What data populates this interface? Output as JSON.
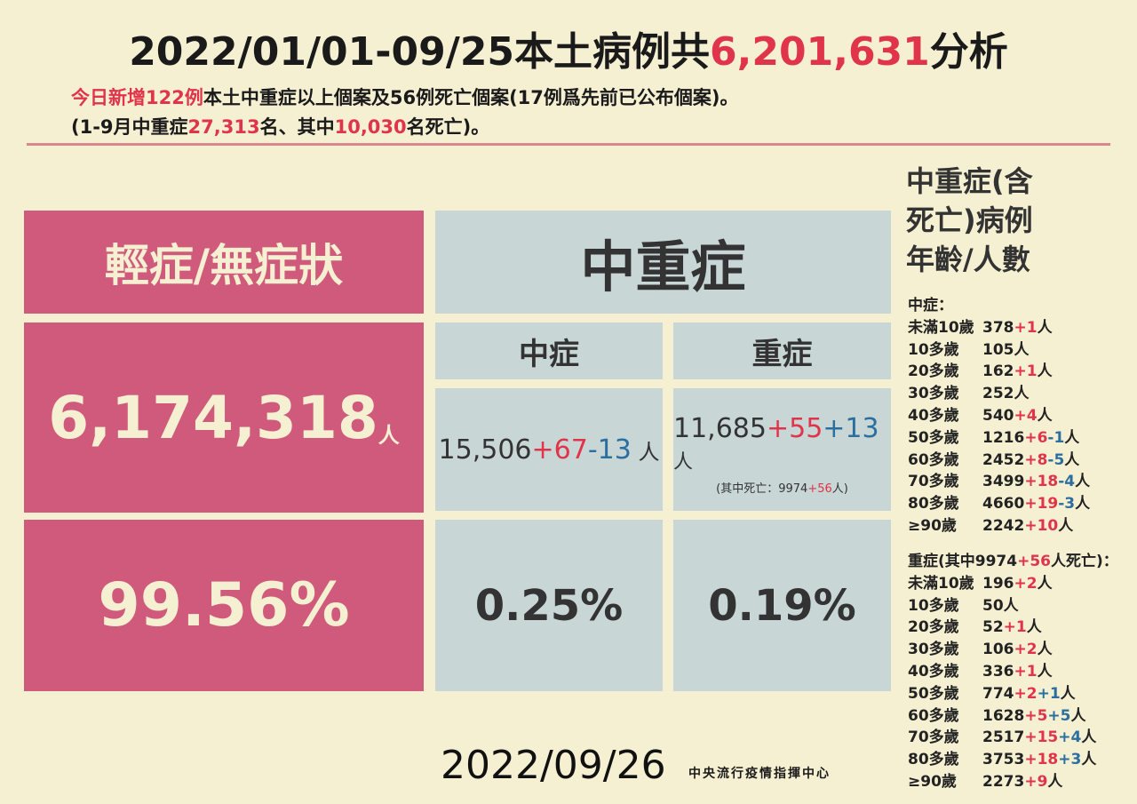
{
  "header": {
    "title": {
      "prefix": "2022/01/01-09/25本土病例共",
      "total": "6,201,631",
      "suffix": "分析"
    },
    "line1": {
      "highlight": "今日新增122例",
      "text": "本土中重症以上個案及56例死亡個案(17例爲先前已公布個案)。"
    },
    "line2": {
      "a": "(1-9月中重症",
      "b": "27,313",
      "c": "名、其中",
      "d": "10,030",
      "e": "名死亡)。"
    }
  },
  "table": {
    "mild": {
      "header": "輕症/無症狀",
      "count": "6,174,318",
      "unit": "人",
      "percent": "99.56%"
    },
    "severe_total": {
      "header": "中重症"
    },
    "moderate": {
      "header": "中症",
      "count": "15,506",
      "up": "+67",
      "down": "-13",
      "unit": " 人",
      "percent": "0.25%"
    },
    "severe": {
      "header": "重症",
      "count": "11,685",
      "up": "+55",
      "dead": "+13",
      "unit": "人",
      "note_prefix": "(其中死亡：9974",
      "note_add": "+56",
      "note_suffix": "人)",
      "percent": "0.19%"
    }
  },
  "age_panel": {
    "title_lines": [
      "中重症(含",
      "死亡)病例",
      "年齡/人數"
    ],
    "unit": "人",
    "moderate": {
      "heading": "中症：",
      "rows": [
        {
          "age": "未滿10歲",
          "count": "378",
          "changes": [
            "+1"
          ]
        },
        {
          "age": "10多歲",
          "count": "105",
          "changes": []
        },
        {
          "age": "20多歲",
          "count": "162",
          "changes": [
            "+1"
          ]
        },
        {
          "age": "30多歲",
          "count": "252",
          "changes": []
        },
        {
          "age": "40多歲",
          "count": "540",
          "changes": [
            "+4"
          ]
        },
        {
          "age": "50多歲",
          "count": "1216",
          "changes": [
            "+6",
            "-1"
          ]
        },
        {
          "age": "60多歲",
          "count": "2452",
          "changes": [
            "+8",
            "-5"
          ]
        },
        {
          "age": "70多歲",
          "count": "3499",
          "changes": [
            "+18",
            "-4"
          ]
        },
        {
          "age": "80多歲",
          "count": "4660",
          "changes": [
            "+19",
            "-3"
          ]
        },
        {
          "age": "≥90歲",
          "count": "2242",
          "changes": [
            "+10"
          ]
        }
      ]
    },
    "severe": {
      "heading_prefix": "重症(其中9974",
      "heading_add": "+56",
      "heading_suffix": "人死亡)：",
      "rows": [
        {
          "age": "未滿10歲",
          "count": "196",
          "changes": [
            "+2"
          ]
        },
        {
          "age": "10多歲",
          "count": "50",
          "changes": []
        },
        {
          "age": "20多歲",
          "count": "52",
          "changes": [
            "+1"
          ]
        },
        {
          "age": "30多歲",
          "count": "106",
          "changes": [
            "+2"
          ]
        },
        {
          "age": "40多歲",
          "count": "336",
          "changes": [
            "+1"
          ]
        },
        {
          "age": "50多歲",
          "count": "774",
          "changes": [
            "+2",
            "+1"
          ]
        },
        {
          "age": "60多歲",
          "count": "1628",
          "changes": [
            "+5",
            "+5"
          ]
        },
        {
          "age": "70多歲",
          "count": "2517",
          "changes": [
            "+15",
            "+4"
          ]
        },
        {
          "age": "80多歲",
          "count": "3753",
          "changes": [
            "+18",
            "+3"
          ]
        },
        {
          "age": "≥90歲",
          "count": "2273",
          "changes": [
            "+9"
          ]
        }
      ]
    }
  },
  "footer": {
    "date": "2022/09/26",
    "agency": "中央流行疫情指揮中心"
  }
}
